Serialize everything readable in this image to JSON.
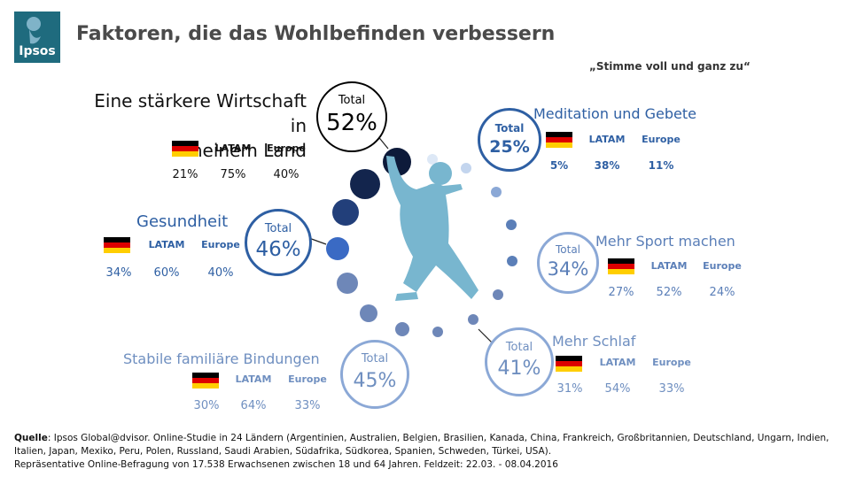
{
  "header": {
    "logo_text": "Ipsos",
    "title": "Faktoren, die das Wohlbefinden verbessern",
    "subtitle": "„Stimme voll und ganz zu“"
  },
  "columns": {
    "latam": "LATAM",
    "europe": "Europe"
  },
  "ring_label": "Total",
  "factors": [
    {
      "name": "Eine stärkere Wirtschaft in meinem Land",
      "name_line1": "Eine stärkere Wirtschaft in",
      "name_line2": "meinem Land",
      "total": "52%",
      "germany": "21%",
      "latam": "75%",
      "europe": "40%",
      "color": "#111111"
    },
    {
      "name": "Meditation und Gebete",
      "total": "25%",
      "germany": "5%",
      "latam": "38%",
      "europe": "11%",
      "color": "#2e5fa3"
    },
    {
      "name": "Gesundheit",
      "total": "46%",
      "germany": "34%",
      "latam": "60%",
      "europe": "40%",
      "color": "#2e5fa3"
    },
    {
      "name": "Mehr Sport machen",
      "total": "34%",
      "germany": "27%",
      "latam": "52%",
      "europe": "24%",
      "color": "#5b7fb8"
    },
    {
      "name": "Mehr Schlaf",
      "total": "41%",
      "germany": "31%",
      "latam": "54%",
      "europe": "33%",
      "color": "#6f8fc0"
    },
    {
      "name": "Stabile familiäre Bindungen",
      "total": "45%",
      "germany": "30%",
      "latam": "64%",
      "europe": "33%",
      "color": "#6f8fc0"
    }
  ],
  "chart_data": {
    "type": "table",
    "title": "Faktoren, die das Wohlbefinden verbessern",
    "subtitle": "„Stimme voll und ganz zu“",
    "columns": [
      "Total",
      "Deutschland",
      "LATAM",
      "Europe"
    ],
    "categories": [
      "Eine stärkere Wirtschaft in meinem Land",
      "Meditation und Gebete",
      "Gesundheit",
      "Mehr Sport machen",
      "Mehr Schlaf",
      "Stabile familiäre Bindungen"
    ],
    "series": [
      {
        "name": "Total",
        "values": [
          52,
          25,
          46,
          34,
          41,
          45
        ]
      },
      {
        "name": "Deutschland",
        "values": [
          21,
          5,
          34,
          27,
          31,
          30
        ]
      },
      {
        "name": "LATAM",
        "values": [
          75,
          38,
          60,
          52,
          54,
          64
        ]
      },
      {
        "name": "Europe",
        "values": [
          40,
          11,
          40,
          24,
          33,
          33
        ]
      }
    ]
  },
  "source": {
    "label": "Quelle",
    "text": ": Ipsos Global@dvisor. Online-Studie in 24 Ländern (Argentinien, Australien, Belgien, Brasilien, Kanada, China, Frankreich, Großbritannien, Deutschland, Ungarn, Indien, Italien, Japan, Mexiko, Peru, Polen, Russland, Saudi Arabien, Südafrika, Südkorea, Spanien, Schweden, Türkei, USA).",
    "line2": "Repräsentative Online-Befragung von 17.538 Erwachsenen zwischen 18 und 64 Jahren. Feldzeit: 22.03. - 08.04.2016"
  }
}
